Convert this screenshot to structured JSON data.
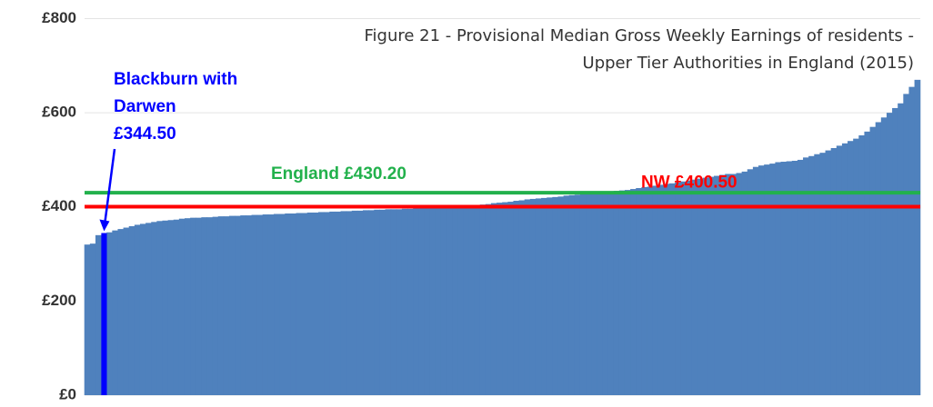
{
  "chart_data": {
    "type": "bar",
    "title": [
      "Figure 21 - Provisional Median Gross Weekly Earnings of residents -",
      "Upper Tier Authorities in England (2015)"
    ],
    "categories": [
      null,
      null,
      null,
      null,
      null,
      null,
      null,
      null,
      null,
      null,
      null,
      null,
      null,
      null,
      null,
      null,
      null,
      null,
      null,
      null,
      null,
      null,
      null,
      null,
      null,
      null,
      null,
      null,
      null,
      null,
      null,
      null,
      null,
      null,
      null,
      null,
      null,
      null,
      null,
      null,
      null,
      null,
      null,
      null,
      null,
      null,
      null,
      null,
      null,
      null,
      null,
      null,
      null,
      null,
      null,
      null,
      null,
      null,
      null,
      null,
      null,
      null,
      null,
      null,
      null,
      null,
      null,
      null,
      null,
      null,
      null,
      null,
      null,
      null,
      null,
      null,
      null,
      null,
      null,
      null,
      null,
      null,
      null,
      null,
      null,
      null,
      null,
      null,
      null,
      null,
      null,
      null,
      null,
      null,
      null,
      null,
      null,
      null,
      null,
      null,
      null,
      null,
      null,
      null,
      null,
      null,
      null,
      null,
      null,
      null,
      null,
      null,
      null,
      null,
      null,
      null,
      null,
      null,
      null,
      null,
      null,
      null,
      null,
      null,
      null,
      null,
      null,
      null,
      null,
      null,
      null,
      null,
      null,
      null,
      null,
      null,
      null,
      null,
      null,
      null,
      null,
      null,
      null,
      null,
      null,
      null,
      null,
      null,
      null,
      null
    ],
    "values": [
      320,
      322,
      340,
      344.5,
      346,
      350,
      353,
      356,
      359,
      362,
      364,
      366,
      368,
      370,
      371,
      372,
      373,
      375,
      376,
      377,
      377,
      378,
      378,
      379,
      380,
      380,
      381,
      381,
      382,
      382,
      383,
      383,
      384,
      384,
      385,
      385,
      386,
      386,
      387,
      387,
      388,
      388,
      389,
      389,
      390,
      390,
      391,
      391,
      392,
      392,
      393,
      393,
      394,
      394,
      395,
      395,
      395,
      396,
      396,
      397,
      397,
      398,
      398,
      399,
      399,
      400,
      400,
      401,
      402,
      403,
      404,
      405,
      406,
      408,
      409,
      410,
      411,
      413,
      414,
      416,
      417,
      418,
      419,
      420,
      421,
      422,
      424,
      425,
      426,
      427,
      428,
      429,
      430,
      431,
      432,
      434,
      435,
      436,
      438,
      440,
      442,
      443,
      445,
      447,
      449,
      450,
      452,
      454,
      456,
      458,
      460,
      462,
      464,
      466,
      468,
      470,
      470,
      472,
      475,
      480,
      485,
      488,
      490,
      492,
      495,
      496,
      497,
      498,
      500,
      505,
      508,
      512,
      515,
      520,
      525,
      530,
      535,
      540,
      545,
      552,
      560,
      570,
      580,
      590,
      600,
      610,
      620,
      640,
      655,
      670
    ],
    "color": "#4f81bd",
    "ylim": [
      0,
      800
    ],
    "yticks": [
      {
        "value": 0,
        "label": "£0"
      },
      {
        "value": 200,
        "label": "£200"
      },
      {
        "value": 400,
        "label": "£400"
      },
      {
        "value": 600,
        "label": "£600"
      },
      {
        "value": 800,
        "label": "£800"
      }
    ],
    "grid": true,
    "reference_lines": [
      {
        "label": "England £430.20",
        "value": 430.2,
        "color": "#22b14c"
      },
      {
        "label": "NW £400.50",
        "value": 400.5,
        "color": "#ff0000"
      }
    ],
    "annotation": {
      "lines": [
        "Blackburn with",
        "Darwen",
        "£344.50"
      ],
      "index": 3,
      "color": "#0000ff"
    }
  }
}
